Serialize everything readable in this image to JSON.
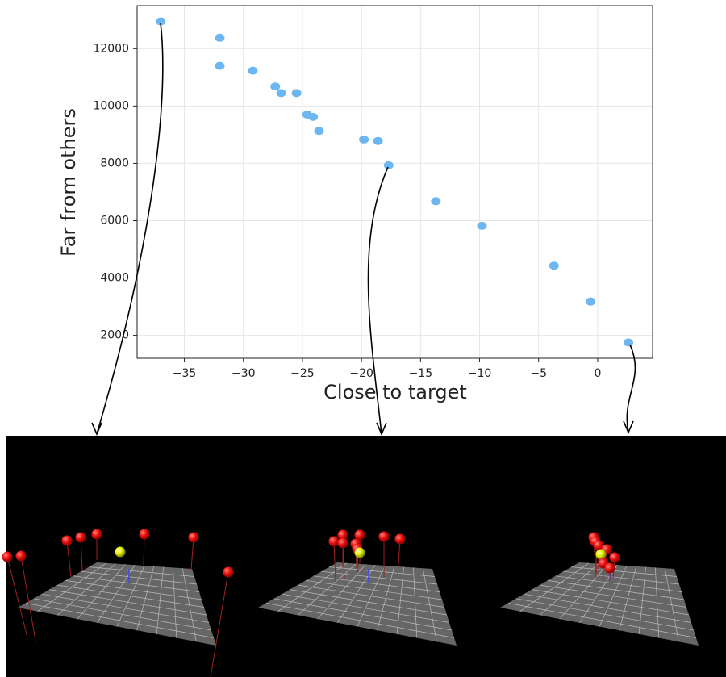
{
  "chart_data": {
    "type": "scatter",
    "x_label": "Close to target",
    "y_label": "Far from others",
    "x": [
      -37,
      -32,
      -32,
      -29.2,
      -27.3,
      -26.8,
      -25.5,
      -24.6,
      -24.1,
      -23.6,
      -19.8,
      -18.6,
      -17.7,
      -13.7,
      -9.8,
      -3.7,
      -0.6,
      2.6
    ],
    "values": [
      12950,
      12380,
      11400,
      11230,
      10680,
      10450,
      10450,
      9700,
      9620,
      9130,
      8830,
      8780,
      7930,
      6680,
      5820,
      4430,
      3180,
      1750
    ],
    "color": "#6cb6f2",
    "xlim": [
      -39,
      4.65
    ],
    "ylim": [
      1200,
      13500
    ],
    "xticks": [
      {
        "value": -35,
        "label": "−35"
      },
      {
        "value": -30,
        "label": "−30"
      },
      {
        "value": -25,
        "label": "−25"
      },
      {
        "value": -20,
        "label": "−20"
      },
      {
        "value": -15,
        "label": "−15"
      },
      {
        "value": -10,
        "label": "−10"
      },
      {
        "value": -5,
        "label": "−5"
      },
      0
    ],
    "yticks": [
      2000,
      4000,
      6000,
      8000,
      10000,
      12000
    ],
    "grid": true
  }
}
